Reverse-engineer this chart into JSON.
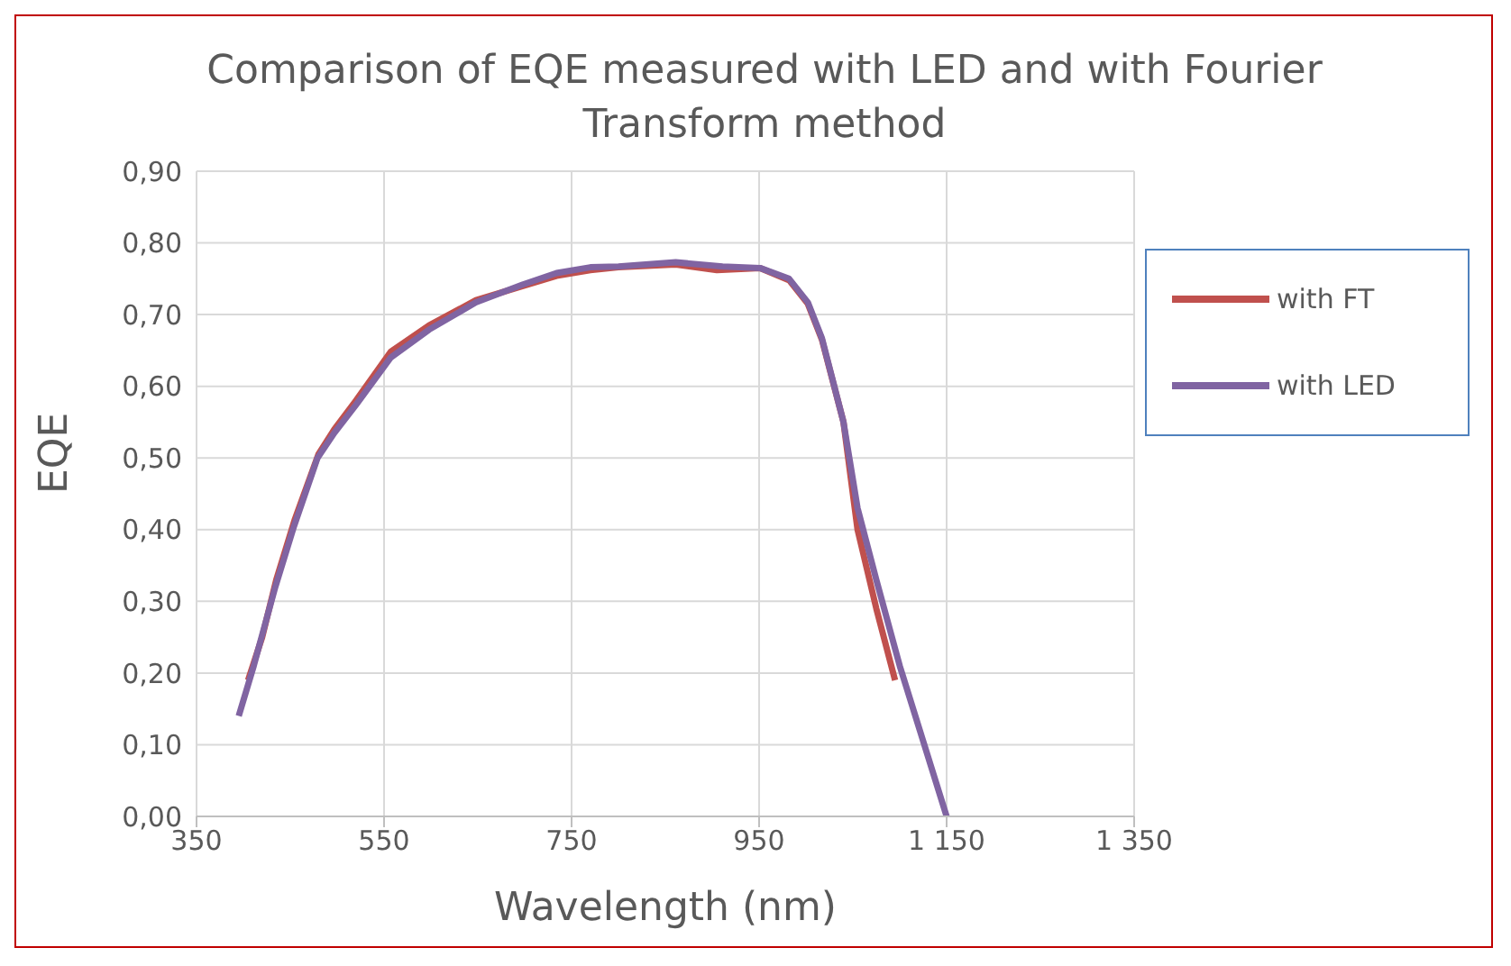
{
  "chart_data": {
    "type": "line",
    "title": "Comparison of EQE measured with LED and with Fourier Transform method",
    "xlabel": "Wavelength (nm)",
    "ylabel": "EQE",
    "xlim": [
      350,
      1350
    ],
    "xticks": [
      350,
      550,
      750,
      950,
      {
        "value": 1150,
        "label": "1 150"
      },
      {
        "value": 1350,
        "label": "1 350"
      }
    ],
    "ylim": [
      0,
      0.9
    ],
    "yticks": [
      {
        "value": 0,
        "label": "0,00"
      },
      {
        "value": 0.1,
        "label": "0,10"
      },
      {
        "value": 0.2,
        "label": "0,20"
      },
      {
        "value": 0.3,
        "label": "0,30"
      },
      {
        "value": 0.4,
        "label": "0,40"
      },
      {
        "value": 0.5,
        "label": "0,50"
      },
      {
        "value": 0.6,
        "label": "0,60"
      },
      {
        "value": 0.7,
        "label": "0,70"
      },
      {
        "value": 0.8,
        "label": "0,80"
      },
      {
        "value": 0.9,
        "label": "0,90"
      }
    ],
    "grid": true,
    "legend": "right",
    "marker": "none",
    "line_style": "solid",
    "series": [
      {
        "name": "with FT",
        "color": "#c0504d",
        "x": [
          405,
          420,
          435,
          455,
          480,
          497,
          520,
          557,
          598,
          648,
          698,
          734,
          770,
          800,
          861,
          905,
          951,
          982,
          1002,
          1017,
          1040,
          1055,
          1075,
          1095
        ],
        "values": [
          0.19,
          0.25,
          0.33,
          0.415,
          0.505,
          0.54,
          0.58,
          0.648,
          0.685,
          0.72,
          0.74,
          0.754,
          0.762,
          0.766,
          0.77,
          0.762,
          0.765,
          0.748,
          0.715,
          0.665,
          0.55,
          0.4,
          0.29,
          0.19
        ]
      },
      {
        "name": "with LED",
        "color": "#8064a2",
        "x": [
          395,
          411,
          434,
          454,
          479,
          497,
          520,
          557,
          598,
          648,
          698,
          734,
          770,
          800,
          861,
          911,
          951,
          982,
          1002,
          1017,
          1040,
          1055,
          1075,
          1100,
          1125,
          1150
        ],
        "values": [
          0.14,
          0.21,
          0.32,
          0.405,
          0.5,
          0.535,
          0.574,
          0.64,
          0.679,
          0.717,
          0.742,
          0.758,
          0.766,
          0.767,
          0.773,
          0.767,
          0.765,
          0.75,
          0.717,
          0.667,
          0.55,
          0.43,
          0.33,
          0.21,
          0.105,
          0
        ]
      }
    ]
  }
}
